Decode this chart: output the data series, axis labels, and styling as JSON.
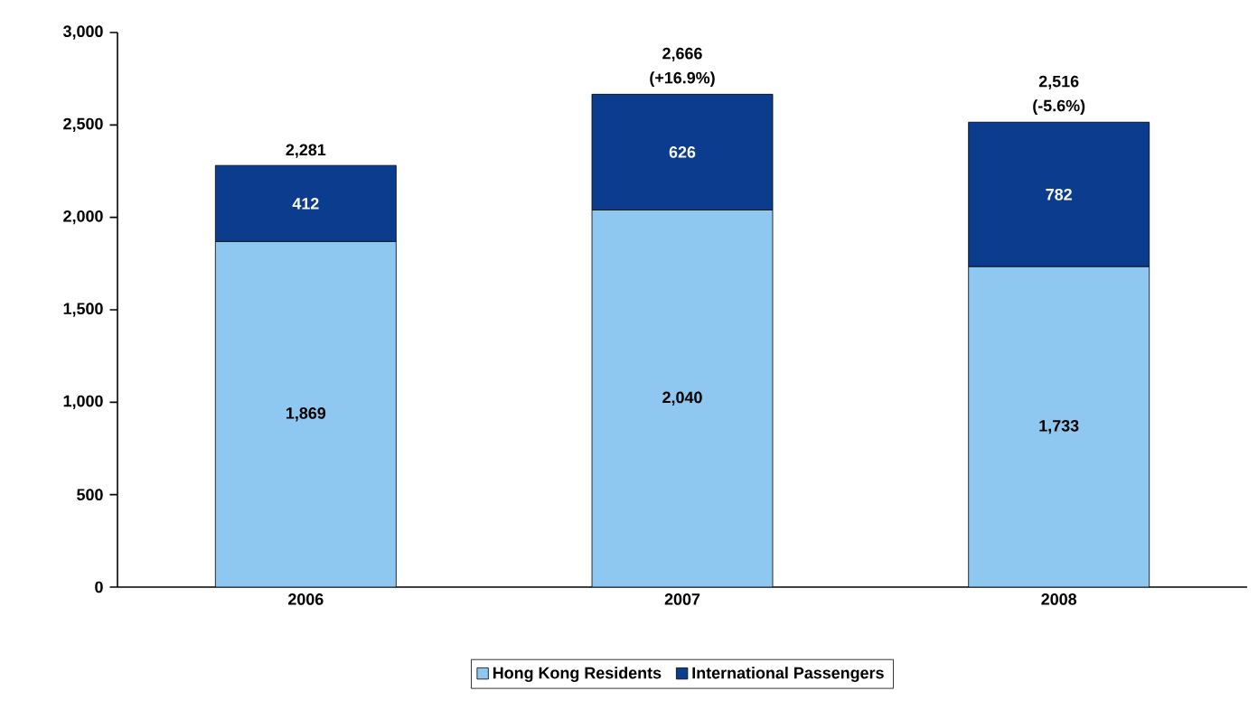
{
  "chart_data": {
    "type": "bar",
    "stacked": true,
    "categories": [
      "2006",
      "2007",
      "2008"
    ],
    "series": [
      {
        "name": "Hong Kong Residents",
        "color": "#8ec8f0",
        "values": [
          1869,
          2040,
          1733
        ],
        "value_labels": [
          "1,869",
          "2,040",
          "1,733"
        ]
      },
      {
        "name": "International Passengers",
        "color": "#0c3c8e",
        "values": [
          412,
          626,
          782
        ],
        "value_labels": [
          "412",
          "626",
          "782"
        ]
      }
    ],
    "totals": [
      "2,281",
      "2,666",
      "2,516"
    ],
    "annotations": [
      {
        "text": "(+16.9%)",
        "x": "2007",
        "y": 2666
      },
      {
        "text": "(-5.6%)",
        "x": "2008",
        "y": 2515
      }
    ],
    "ylim": [
      0,
      3000
    ],
    "yticks": [
      0,
      500,
      {
        "value": 1000,
        "label": "1,000"
      },
      {
        "value": 1500,
        "label": "1,500"
      },
      {
        "value": 2000,
        "label": "2,000"
      },
      {
        "value": 2500,
        "label": "2,500"
      },
      {
        "value": 3000,
        "label": "3,000"
      }
    ],
    "legend": "bottom",
    "grid": false
  }
}
